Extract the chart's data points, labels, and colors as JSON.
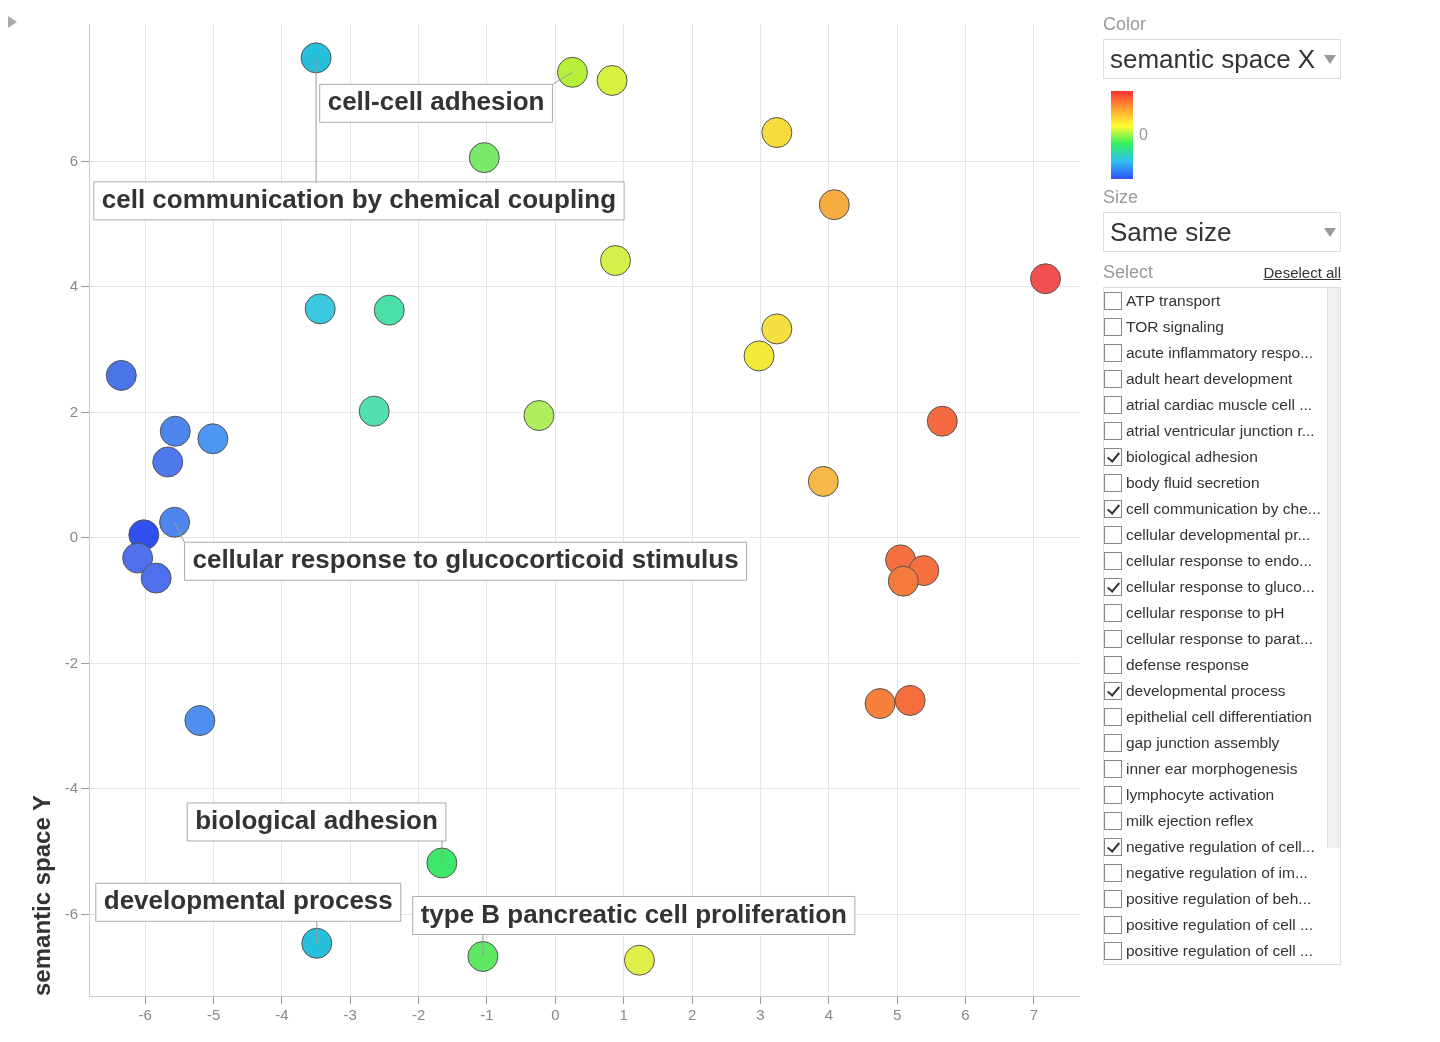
{
  "chart_data": [
    {
      "type": "scatter",
      "ylabel": "semantic space Y",
      "x": [
        -3.5,
        0.25,
        0.83,
        3.24,
        -1.04,
        4.08,
        0.88,
        7.17,
        -3.44,
        -2.43,
        3.24,
        2.98,
        -6.35,
        -5.56,
        -5.01,
        -2.65,
        -0.24,
        5.66,
        -5.67,
        3.92,
        -5.57,
        -6.02,
        -6.11,
        -5.84,
        5.05,
        5.39,
        5.09,
        4.75,
        5.19,
        -5.2,
        -1.66,
        -3.49,
        -1.06,
        1.23
      ],
      "values": [
        7.65,
        7.42,
        7.29,
        6.46,
        6.06,
        5.31,
        4.42,
        4.13,
        3.65,
        3.63,
        3.33,
        2.9,
        2.59,
        1.7,
        1.58,
        2.02,
        1.95,
        1.86,
        1.21,
        0.9,
        0.25,
        0.05,
        -0.32,
        -0.64,
        -0.35,
        -0.52,
        -0.69,
        -2.64,
        -2.59,
        -2.91,
        -5.18,
        -6.46,
        -6.67,
        -6.73
      ],
      "colors": [
        "#26c0dc",
        "#b5f03a",
        "#d8f03e",
        "#f7dc3c",
        "#7ae86a",
        "#f7ac40",
        "#d4f04a",
        "#f25050",
        "#3cc8e0",
        "#4ae0a8",
        "#f5e040",
        "#f2ea38",
        "#4a74e8",
        "#4e86ee",
        "#4e96f4",
        "#52e0b0",
        "#b0ee5e",
        "#f46a3e",
        "#4e78ec",
        "#f8b848",
        "#4e86ee",
        "#2f50ee",
        "#5070ec",
        "#4e70ec",
        "#f5703e",
        "#f5703e",
        "#f57a3e",
        "#f7803c",
        "#f56e3c",
        "#4e90f0",
        "#3ce86a",
        "#26c0dc",
        "#5ce860",
        "#e0f04a"
      ],
      "xlim": [
        -6.82,
        7.66
      ],
      "ylim": [
        -7.3,
        8.19
      ],
      "xticks": [
        -6,
        -5,
        -4,
        -3,
        -2,
        -1,
        0,
        1,
        2,
        3,
        4,
        5,
        6,
        7
      ],
      "yticks": [
        -6,
        -4,
        -2,
        0,
        2,
        4,
        6
      ],
      "grid": true,
      "legend": false,
      "marker": "circle",
      "annotations": [
        {
          "text": "cell communication by chemical coupling",
          "x": -3.5,
          "y": 7.65
        },
        {
          "text": "cell-cell adhesion",
          "x": 0.25,
          "y": 7.42
        },
        {
          "text": "cellular response to glucocorticoid stimulus",
          "x": -5.57,
          "y": 0.25
        },
        {
          "text": "biological adhesion",
          "x": -1.66,
          "y": -5.18
        },
        {
          "text": "developmental process",
          "x": -3.49,
          "y": -6.46
        },
        {
          "text": "type B pancreatic cell proliferation",
          "x": -1.06,
          "y": -6.67
        }
      ]
    },
    {
      "type": "other",
      "annotations": [
        "Color",
        "semantic space X",
        "0",
        "Size",
        "Same size",
        "Select",
        "Deselect all",
        "ATP transport",
        "TOR signaling",
        "acute inflammatory respo...",
        "adult heart development",
        "atrial cardiac muscle cell ...",
        "atrial ventricular junction r...",
        "biological adhesion",
        "body fluid secretion",
        "cell communication by che...",
        "cellular developmental pr...",
        "cellular response to endo...",
        "cellular response to gluco...",
        "cellular response to pH",
        "cellular response to parat...",
        "defense response",
        "developmental process",
        "epithelial cell differentiation",
        "gap junction assembly",
        "inner ear morphogenesis",
        "lymphocyte activation",
        "milk ejection reflex",
        "negative regulation of cell...",
        "negative regulation of im...",
        "positive regulation of beh...",
        "positive regulation of cell ...",
        "positive regulation of cell ..."
      ]
    }
  ]
}
